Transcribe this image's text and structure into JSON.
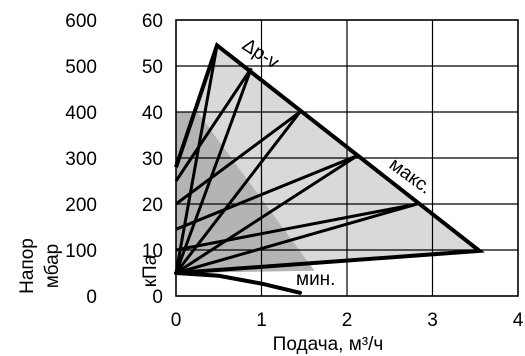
{
  "chart_data": {
    "type": "line",
    "x_axis": {
      "label": "Подача, м³/ч",
      "range": [
        0,
        4
      ],
      "ticks": [
        0,
        1,
        2,
        3,
        4
      ]
    },
    "y_axis_left": {
      "label": "кПа",
      "range": [
        0,
        60
      ],
      "ticks": [
        0,
        10,
        20,
        30,
        40,
        50,
        60
      ]
    },
    "y_axis_outer": {
      "label_line1": "Напор",
      "label_line2": "мбар",
      "ticks": [
        0,
        100,
        200,
        300,
        400,
        500,
        600
      ]
    },
    "grid": true,
    "colors": {
      "envelope_fill": "#d9d9d9",
      "inner_fill": "#b4b4b4",
      "line": "#000000",
      "grid": "#000000"
    },
    "envelope": {
      "label": "макс.",
      "points": [
        [
          0,
          28
        ],
        [
          0.48,
          54.5
        ],
        [
          3.55,
          9.8
        ],
        [
          0,
          5
        ]
      ]
    },
    "inner_region": {
      "points": [
        [
          0,
          40
        ],
        [
          0.25,
          40
        ],
        [
          1.62,
          5.5
        ],
        [
          0,
          5
        ]
      ]
    },
    "dp_v_lines": {
      "label": "Δp-v",
      "from": [
        0,
        5
      ],
      "to": [
        [
          0.48,
          54.5
        ],
        [
          0.88,
          49.5
        ],
        [
          1.45,
          40
        ],
        [
          2.12,
          30.5
        ],
        [
          2.82,
          20
        ],
        [
          3.55,
          9.8
        ]
      ],
      "steep_lines": [
        {
          "from": [
            0,
            28
          ],
          "to": [
            0.48,
            54.5
          ]
        },
        {
          "from": [
            0,
            25
          ],
          "to": [
            0.88,
            49.5
          ]
        },
        {
          "from": [
            0,
            20
          ],
          "to": [
            1.45,
            40
          ]
        },
        {
          "from": [
            0,
            14.5
          ],
          "to": [
            2.12,
            30.5
          ]
        },
        {
          "from": [
            0,
            10
          ],
          "to": [
            2.82,
            20
          ]
        }
      ]
    },
    "min_curve": {
      "label": "мин.",
      "points": [
        [
          0,
          5
        ],
        [
          0.5,
          4.4
        ],
        [
          1.0,
          2.7
        ],
        [
          1.45,
          0.7
        ]
      ]
    }
  }
}
